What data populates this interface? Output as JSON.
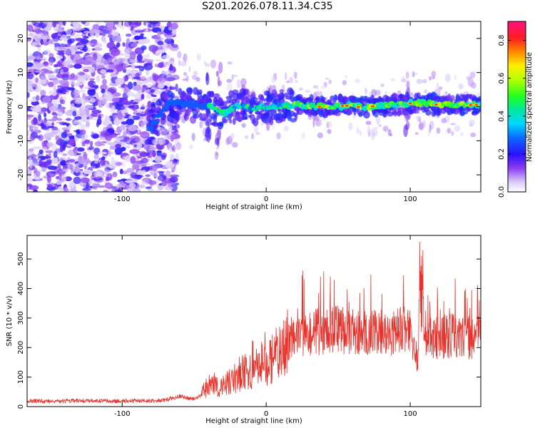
{
  "figure_title": "S201.2026.078.11.34.C35",
  "chart_data": [
    {
      "type": "heatmap",
      "title": "S201.2026.078.11.34.C35",
      "xlabel": "Height of straight line (km)",
      "ylabel": "Frequency (Hz)",
      "xlim": [
        -166,
        149
      ],
      "ylim": [
        -25,
        25
      ],
      "xticks": [
        -100,
        0,
        100
      ],
      "xtick_labels": [
        "-100",
        "0",
        "100"
      ],
      "yticks": [
        -20,
        -10,
        0,
        10,
        20
      ],
      "ytick_labels": [
        "-20",
        "-10",
        "0",
        "10",
        "20"
      ],
      "colorbar": {
        "label": "Normalized spectral amplitude",
        "range": [
          0,
          0.9
        ],
        "ticks": [
          0.0,
          0.2,
          0.4,
          0.6,
          0.8
        ],
        "tick_labels": [
          "0.0",
          "0.2",
          "0.4",
          "0.6",
          "0.8"
        ]
      },
      "ridge": {
        "description_values": "dominant frequency ridge (Hz) vs height (km)",
        "x": [
          -80,
          -75,
          -70,
          -65,
          -60,
          -50,
          -40,
          -30,
          -20,
          -10,
          0,
          10,
          20,
          30,
          40,
          50,
          60,
          70,
          80,
          90,
          100,
          110,
          120,
          130,
          140,
          149
        ],
        "y": [
          -6,
          -3,
          0,
          1.5,
          1,
          0.5,
          0,
          -2,
          0.5,
          -0.5,
          0,
          0,
          0.5,
          0.3,
          0,
          0.2,
          0.3,
          0,
          0.3,
          0.5,
          1,
          1,
          0.5,
          0.5,
          0.5,
          0.5
        ]
      }
    },
    {
      "type": "line",
      "title": "",
      "xlabel": "Height of straight line (km)",
      "ylabel": "SNR (10 * v/v)",
      "xlim": [
        -166,
        149
      ],
      "ylim": [
        0,
        580
      ],
      "xticks": [
        -100,
        0,
        100
      ],
      "xtick_labels": [
        "-100",
        "0",
        "100"
      ],
      "yticks": [
        0,
        100,
        200,
        300,
        400,
        500
      ],
      "ytick_labels": [
        "0",
        "100",
        "200",
        "300",
        "400",
        "500"
      ],
      "color": "#e8312a",
      "series": [
        {
          "name": "SNR",
          "x": [
            -166,
            -150,
            -130,
            -110,
            -90,
            -80,
            -70,
            -60,
            -55,
            -50,
            -45,
            -40,
            -35,
            -30,
            -25,
            -20,
            -15,
            -10,
            -5,
            0,
            5,
            10,
            15,
            20,
            25,
            30,
            40,
            50,
            60,
            70,
            80,
            90,
            100,
            105,
            108,
            110,
            115,
            120,
            125,
            130,
            135,
            140,
            145,
            149
          ],
          "y": [
            20,
            18,
            20,
            19,
            20,
            20,
            22,
            35,
            30,
            25,
            40,
            80,
            70,
            60,
            90,
            100,
            120,
            130,
            140,
            150,
            170,
            190,
            220,
            240,
            245,
            250,
            255,
            260,
            250,
            245,
            250,
            255,
            260,
            150,
            450,
            250,
            240,
            230,
            235,
            240,
            230,
            235,
            240,
            240
          ]
        }
      ]
    }
  ]
}
